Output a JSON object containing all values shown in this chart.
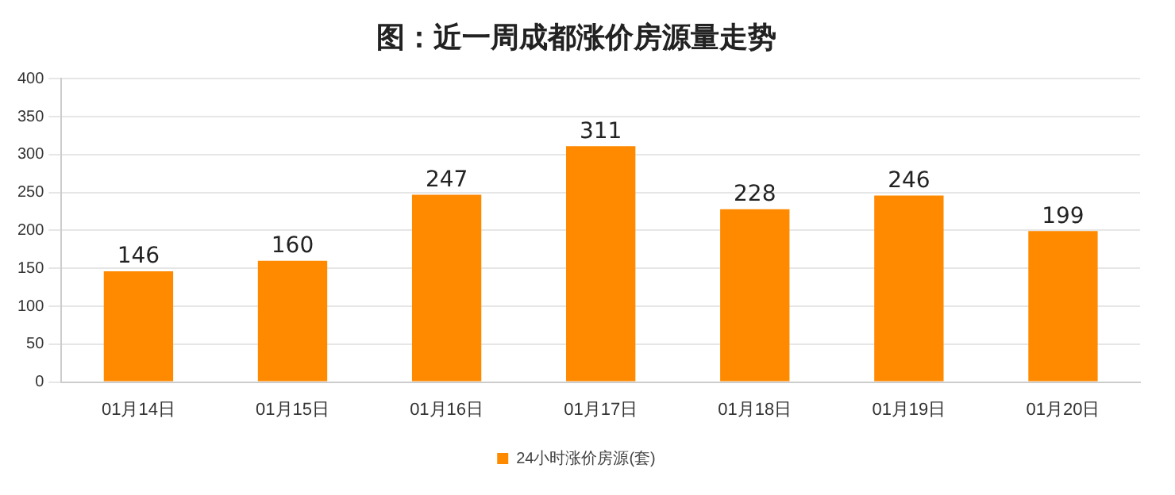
{
  "chart_data": {
    "type": "bar",
    "title": "图：近一周成都涨价房源量走势",
    "categories": [
      "01月14日",
      "01月15日",
      "01月16日",
      "01月17日",
      "01月18日",
      "01月19日",
      "01月20日"
    ],
    "series": [
      {
        "name": "24小时涨价房源(套)",
        "color": "#ff8a00",
        "values": [
          146,
          160,
          247,
          311,
          228,
          246,
          199
        ]
      }
    ],
    "ylim": [
      0,
      400
    ],
    "yticks": [
      0,
      50,
      100,
      150,
      200,
      250,
      300,
      350,
      400
    ],
    "grid": "y",
    "legend": "bottom",
    "data_labels": true
  }
}
